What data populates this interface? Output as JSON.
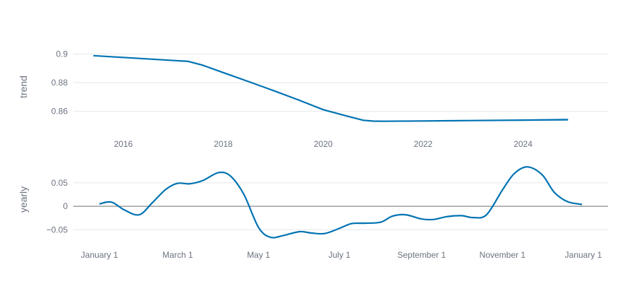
{
  "chart_data": [
    {
      "type": "line",
      "ylabel": "trend",
      "x_ticks": [
        "2016",
        "2018",
        "2020",
        "2022",
        "2024"
      ],
      "y_ticks": [
        "0.86",
        "0.88",
        "0.9"
      ],
      "ylim": [
        0.8515,
        0.9105
      ],
      "xlim": [
        2015.0,
        2025.7
      ],
      "grid": true,
      "color": "#0072b2",
      "band_color": "#9ecae1",
      "series": [
        {
          "x": [
            2015.4,
            2017.3,
            2017.6,
            2018.0,
            2018.5,
            2019.0,
            2019.5,
            2020.0,
            2020.5,
            2020.8,
            2021.0,
            2021.2,
            2022.0,
            2023.0,
            2024.0,
            2024.9
          ],
          "y": [
            0.8988,
            0.8948,
            0.892,
            0.887,
            0.8808,
            0.8745,
            0.868,
            0.8612,
            0.8565,
            0.8538,
            0.8532,
            0.8531,
            0.8533,
            0.8536,
            0.8539,
            0.8542
          ]
        }
      ],
      "uncertainty_band": {
        "x": [
          2024.0,
          2024.9
        ],
        "lower": [
          0.8536,
          0.8534
        ],
        "upper": [
          0.8542,
          0.8551
        ]
      }
    },
    {
      "type": "line",
      "ylabel": "yearly",
      "x_ticks": [
        "January 1",
        "March 1",
        "May 1",
        "July 1",
        "September 1",
        "November 1",
        "January 1"
      ],
      "y_ticks": [
        "0.05",
        "0",
        "−0.05"
      ],
      "ylim": [
        -0.072,
        0.086
      ],
      "zero_line": true,
      "grid": true,
      "color": "#0072b2",
      "series": [
        {
          "x": [
            "2017-01-01",
            "2017-01-10",
            "2017-01-20",
            "2017-01-31",
            "2017-02-10",
            "2017-02-20",
            "2017-03-01",
            "2017-03-10",
            "2017-03-20",
            "2017-04-01",
            "2017-04-10",
            "2017-04-20",
            "2017-05-01",
            "2017-05-10",
            "2017-05-20",
            "2017-06-01",
            "2017-06-10",
            "2017-06-20",
            "2017-07-01",
            "2017-07-10",
            "2017-07-20",
            "2017-08-01",
            "2017-08-10",
            "2017-08-20",
            "2017-09-01",
            "2017-09-10",
            "2017-09-20",
            "2017-10-01",
            "2017-10-10",
            "2017-10-20",
            "2017-11-01",
            "2017-11-10",
            "2017-11-20",
            "2017-12-01",
            "2017-12-10",
            "2017-12-20",
            "2017-12-31"
          ],
          "y": [
            0.005,
            0.009,
            -0.008,
            -0.018,
            0.008,
            0.036,
            0.049,
            0.048,
            0.055,
            0.072,
            0.064,
            0.025,
            -0.045,
            -0.066,
            -0.062,
            -0.054,
            -0.057,
            -0.058,
            -0.047,
            -0.037,
            -0.036,
            -0.034,
            -0.021,
            -0.018,
            -0.027,
            -0.028,
            -0.022,
            -0.02,
            -0.024,
            -0.018,
            0.035,
            0.07,
            0.084,
            0.067,
            0.03,
            0.01,
            0.004
          ]
        }
      ]
    }
  ]
}
